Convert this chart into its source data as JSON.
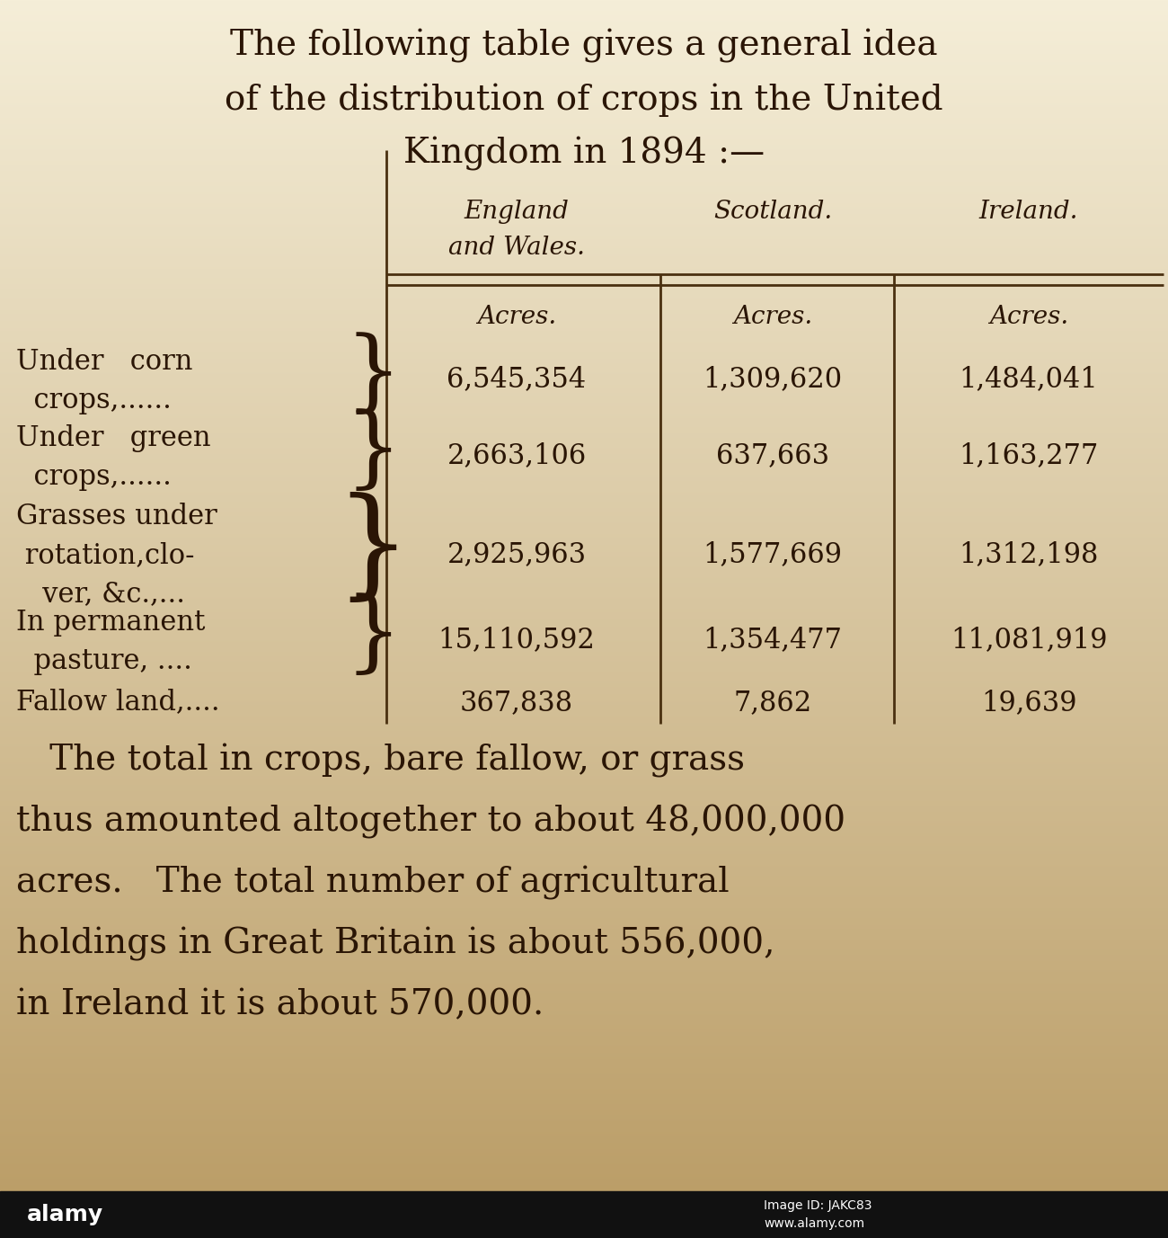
{
  "title_lines": [
    "The following table gives a general idea",
    "of the distribution of crops in the United",
    "Kingdom in 1894 :—"
  ],
  "col_headers_line1": [
    "England",
    "Scotland.",
    "Ireland."
  ],
  "col_headers_line2": [
    "and Wales.",
    "",
    ""
  ],
  "subheaders": [
    "Acres.",
    "Acres.",
    "Acres."
  ],
  "rows": [
    {
      "label_lines": [
        "Under   corn",
        "  crops,......"
      ],
      "brace": "}",
      "values": [
        "6,545,354",
        "1,309,620",
        "1,484,041"
      ]
    },
    {
      "label_lines": [
        "Under   green",
        "  crops,......"
      ],
      "brace": "}",
      "values": [
        "2,663,106",
        "637,663",
        "1,163,277"
      ]
    },
    {
      "label_lines": [
        "Grasses under",
        " rotation,clo-",
        "   ver, &c.,..."
      ],
      "brace": "}",
      "values": [
        "2,925,963",
        "1,577,669",
        "1,312,198"
      ]
    },
    {
      "label_lines": [
        "In permanent",
        "  pasture, ...."
      ],
      "brace": "}",
      "values": [
        "15,110,592",
        "1,354,477",
        "11,081,919"
      ]
    },
    {
      "label_lines": [
        "Fallow land,...."
      ],
      "brace": "",
      "values": [
        "367,838",
        "7,862",
        "19,639"
      ]
    }
  ],
  "footer_lines": [
    "   The total in crops, bare fallow, or grass",
    "thus amounted altogether to about 48,000,000",
    "acres.   The total number of agricultural",
    "holdings in Great Britain is about 556,000,",
    "in Ireland it is about 570,000."
  ],
  "bg_color_top": "#f5eed8",
  "bg_color_bottom": "#c9a870",
  "text_color": "#2a1505",
  "line_color": "#4a3010",
  "alamy_bar_color": "#111111",
  "alamy_text": "Image ID: JAKC83",
  "alamy_url": "www.alamy.com"
}
